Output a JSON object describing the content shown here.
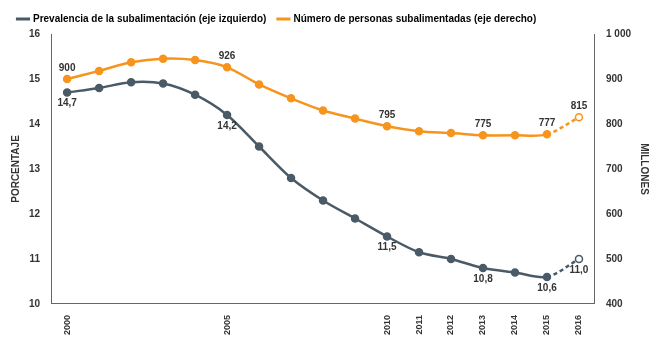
{
  "chart_data": {
    "type": "line",
    "categories": [
      "2000",
      null,
      null,
      null,
      null,
      "2005",
      null,
      null,
      null,
      null,
      "2010",
      "2011",
      "2012",
      "2013",
      "2014",
      "2015",
      "2016"
    ],
    "y_label": "PORCENTAJE",
    "y2_label": "MILLONES",
    "ylim": [
      10,
      16
    ],
    "yticks": [
      10,
      11,
      12,
      13,
      14,
      15,
      16
    ],
    "y2lim": [
      400,
      1000
    ],
    "y2ticks": [
      400,
      500,
      600,
      700,
      800,
      900,
      {
        "value": 1000,
        "label": "1 000"
      }
    ],
    "grid": false,
    "legend": "top",
    "data_labels": true,
    "series": [
      {
        "name": "Prevalencia de la subalimentación (eje izquierdo)",
        "color": "#4a5a66",
        "marker": "circle",
        "values": [
          14.7,
          14.8,
          14.93,
          14.9,
          14.65,
          14.2,
          13.5,
          12.8,
          12.3,
          11.9,
          11.5,
          11.15,
          11.0,
          10.8,
          10.7,
          10.6,
          11.0
        ],
        "value_labels": [
          "14,7",
          null,
          null,
          null,
          null,
          "14,2",
          null,
          null,
          null,
          null,
          "11,5",
          null,
          null,
          "10,8",
          null,
          "10,6",
          "11,0"
        ]
      },
      {
        "name": "Número de personas subalimentadas (eje derecho)",
        "color": "#f7941d",
        "marker": "circle",
        "axis": "y2",
        "values": [
          900,
          918,
          937,
          945,
          942,
          926,
          888,
          857,
          830,
          812,
          795,
          784,
          780,
          775,
          775,
          777,
          815
        ],
        "value_labels": [
          "900",
          null,
          null,
          null,
          null,
          "926",
          null,
          null,
          null,
          null,
          "795",
          null,
          null,
          "775",
          null,
          "777",
          "815"
        ]
      }
    ]
  }
}
